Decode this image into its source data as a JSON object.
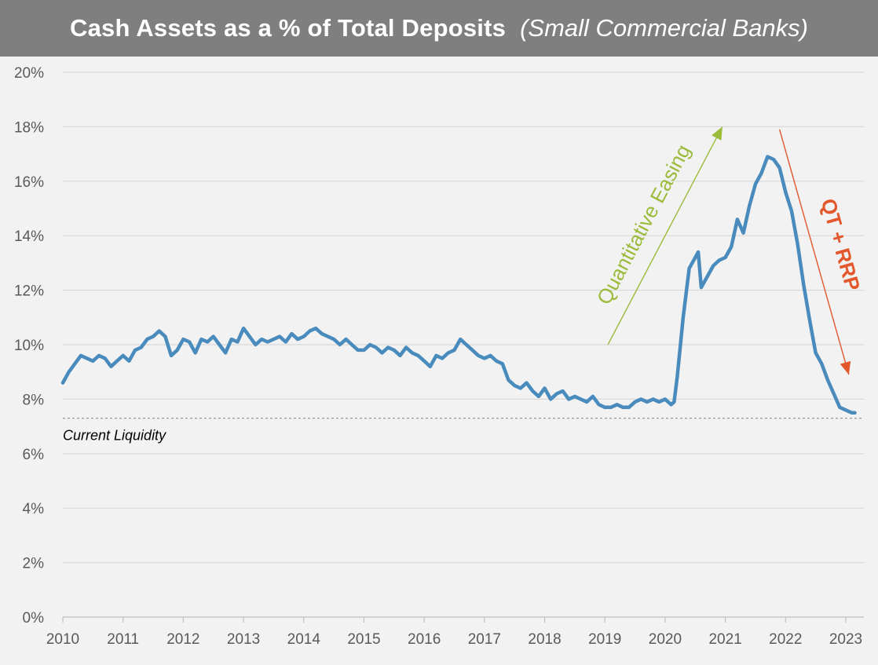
{
  "chart_data": {
    "type": "line",
    "title": "Cash Assets as a % of Total Deposits",
    "subtitle": "(Small Commercial Banks)",
    "xlabel": "",
    "ylabel": "",
    "xlim": [
      2010,
      2023.3
    ],
    "ylim": [
      0,
      20
    ],
    "x_ticks": [
      "2010",
      "2011",
      "2012",
      "2013",
      "2014",
      "2015",
      "2016",
      "2017",
      "2018",
      "2019",
      "2020",
      "2021",
      "2022",
      "2023"
    ],
    "y_ticks": [
      "0%",
      "2%",
      "4%",
      "6%",
      "8%",
      "10%",
      "12%",
      "14%",
      "16%",
      "18%",
      "20%"
    ],
    "grid": true,
    "legend": "none",
    "series": [
      {
        "color": "#4a8bbd",
        "x": [
          2010.0,
          2010.1,
          2010.2,
          2010.3,
          2010.4,
          2010.5,
          2010.6,
          2010.7,
          2010.8,
          2010.9,
          2011.0,
          2011.1,
          2011.2,
          2011.3,
          2011.4,
          2011.5,
          2011.6,
          2011.7,
          2011.8,
          2011.9,
          2012.0,
          2012.1,
          2012.2,
          2012.3,
          2012.4,
          2012.5,
          2012.6,
          2012.7,
          2012.8,
          2012.9,
          2013.0,
          2013.1,
          2013.2,
          2013.3,
          2013.4,
          2013.5,
          2013.6,
          2013.7,
          2013.8,
          2013.9,
          2014.0,
          2014.1,
          2014.2,
          2014.3,
          2014.4,
          2014.5,
          2014.6,
          2014.7,
          2014.8,
          2014.9,
          2015.0,
          2015.1,
          2015.2,
          2015.3,
          2015.4,
          2015.5,
          2015.6,
          2015.7,
          2015.8,
          2015.9,
          2016.0,
          2016.1,
          2016.2,
          2016.3,
          2016.4,
          2016.5,
          2016.6,
          2016.7,
          2016.8,
          2016.9,
          2017.0,
          2017.1,
          2017.2,
          2017.3,
          2017.4,
          2017.5,
          2017.6,
          2017.7,
          2017.8,
          2017.9,
          2018.0,
          2018.1,
          2018.2,
          2018.3,
          2018.4,
          2018.5,
          2018.6,
          2018.7,
          2018.8,
          2018.9,
          2019.0,
          2019.1,
          2019.2,
          2019.3,
          2019.4,
          2019.5,
          2019.6,
          2019.7,
          2019.8,
          2019.9,
          2020.0,
          2020.1,
          2020.15,
          2020.2,
          2020.3,
          2020.4,
          2020.5,
          2020.55,
          2020.6,
          2020.7,
          2020.8,
          2020.9,
          2021.0,
          2021.1,
          2021.2,
          2021.3,
          2021.4,
          2021.5,
          2021.6,
          2021.7,
          2021.8,
          2021.9,
          2022.0,
          2022.1,
          2022.2,
          2022.3,
          2022.4,
          2022.5,
          2022.6,
          2022.7,
          2022.8,
          2022.9,
          2023.0,
          2023.1,
          2023.15
        ],
        "y": [
          8.6,
          9.0,
          9.3,
          9.6,
          9.5,
          9.4,
          9.6,
          9.5,
          9.2,
          9.4,
          9.6,
          9.4,
          9.8,
          9.9,
          10.2,
          10.3,
          10.5,
          10.3,
          9.6,
          9.8,
          10.2,
          10.1,
          9.7,
          10.2,
          10.1,
          10.3,
          10.0,
          9.7,
          10.2,
          10.1,
          10.6,
          10.3,
          10.0,
          10.2,
          10.1,
          10.2,
          10.3,
          10.1,
          10.4,
          10.2,
          10.3,
          10.5,
          10.6,
          10.4,
          10.3,
          10.2,
          10.0,
          10.2,
          10.0,
          9.8,
          9.8,
          10.0,
          9.9,
          9.7,
          9.9,
          9.8,
          9.6,
          9.9,
          9.7,
          9.6,
          9.4,
          9.2,
          9.6,
          9.5,
          9.7,
          9.8,
          10.2,
          10.0,
          9.8,
          9.6,
          9.5,
          9.6,
          9.4,
          9.3,
          8.7,
          8.5,
          8.4,
          8.6,
          8.3,
          8.1,
          8.4,
          8.0,
          8.2,
          8.3,
          8.0,
          8.1,
          8.0,
          7.9,
          8.1,
          7.8,
          7.7,
          7.7,
          7.8,
          7.7,
          7.7,
          7.9,
          8.0,
          7.9,
          8.0,
          7.9,
          8.0,
          7.8,
          7.9,
          8.8,
          11.0,
          12.8,
          13.2,
          13.4,
          12.1,
          12.5,
          12.9,
          13.1,
          13.2,
          13.6,
          14.6,
          14.1,
          15.1,
          15.9,
          16.3,
          16.9,
          16.8,
          16.5,
          15.6,
          14.9,
          13.7,
          12.2,
          10.9,
          9.7,
          9.3,
          8.7,
          8.2,
          7.7,
          7.6,
          7.5,
          7.5
        ]
      }
    ],
    "reference_line": {
      "y": 7.3,
      "label": "Current Liquidity"
    },
    "annotations": [
      {
        "text": "Quantitative Easing",
        "color": "#9bbb3b",
        "x_start": 2019.05,
        "y_start": 10.0,
        "x_end": 2020.95,
        "y_end": 18.0
      },
      {
        "text": "QT + RRP",
        "color": "#e2572b",
        "x_start": 2021.9,
        "y_start": 17.9,
        "x_end": 2023.05,
        "y_end": 8.9
      }
    ]
  }
}
